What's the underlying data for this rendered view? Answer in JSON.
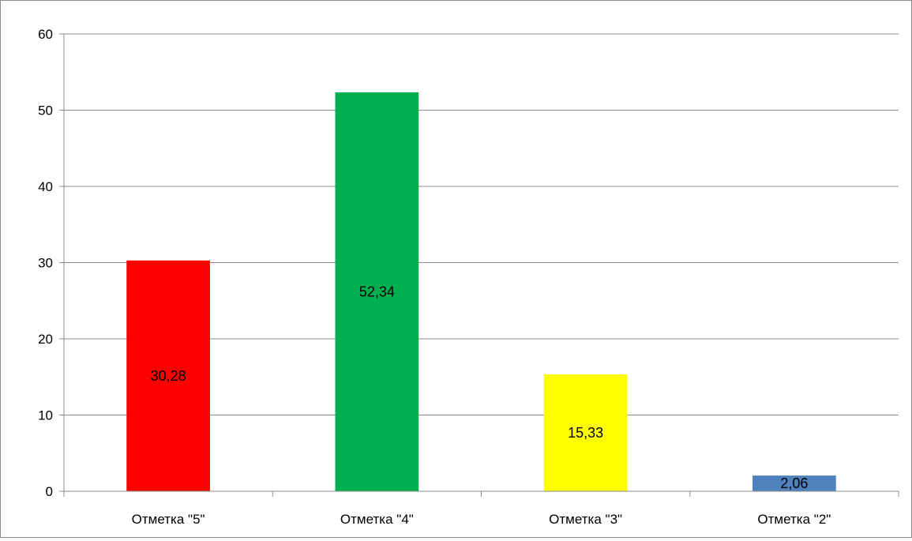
{
  "chart_data": {
    "type": "bar",
    "categories": [
      "Отметка \"5\"",
      "Отметка \"4\"",
      "Отметка \"3\"",
      "Отметка \"2\""
    ],
    "values": [
      30.28,
      52.34,
      15.33,
      2.06
    ],
    "data_labels": [
      "30,28",
      "52,34",
      "15,33",
      "2,06"
    ],
    "colors": [
      "#ff0000",
      "#00b050",
      "#ffff00",
      "#4f81bd"
    ],
    "title": "",
    "xlabel": "",
    "ylabel": "",
    "ylim": [
      0,
      60
    ],
    "yticks": [
      0,
      10,
      20,
      30,
      40,
      50,
      60
    ],
    "grid": true,
    "legend": "none"
  }
}
